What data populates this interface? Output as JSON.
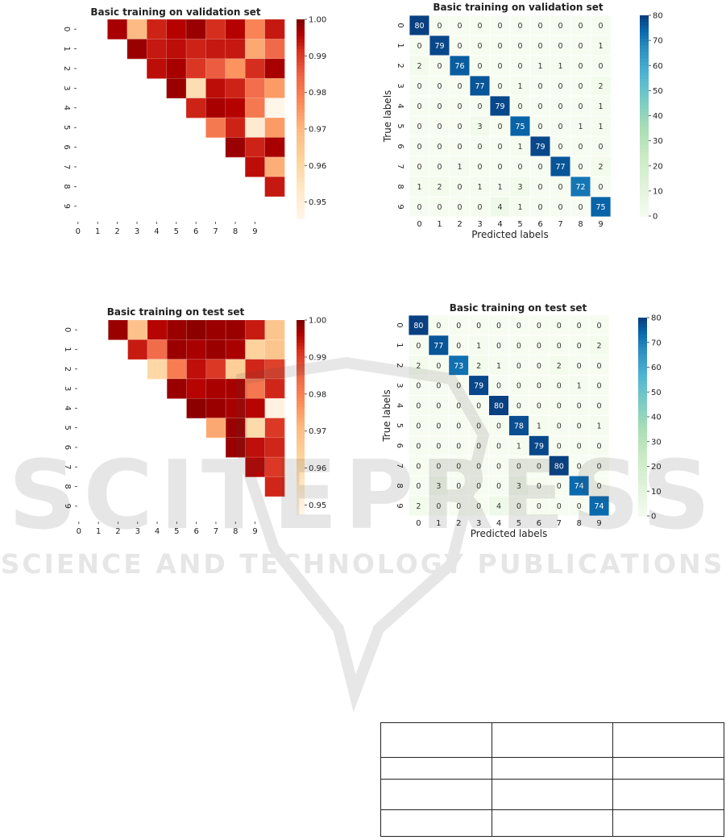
{
  "heatmaps": [
    {
      "title": "Basic training on validation set",
      "labels": [
        "0",
        "1",
        "2",
        "3",
        "4",
        "5",
        "6",
        "7",
        "8",
        "9"
      ],
      "colorbar_ticks": [
        "1.00",
        "0.99",
        "0.98",
        "0.97",
        "0.96",
        "0.95"
      ],
      "colorbar_values": [
        1.0,
        0.99,
        0.98,
        0.97,
        0.96,
        0.95
      ],
      "vmin": 0.9455,
      "vmax": 1.0,
      "matrix": [
        [
          null,
          0.997,
          0.97,
          0.993,
          0.996,
          0.998,
          0.992,
          0.996,
          0.979,
          0.994
        ],
        [
          null,
          null,
          0.998,
          0.994,
          0.995,
          0.993,
          0.994,
          0.994,
          0.973,
          0.984
        ],
        [
          null,
          null,
          null,
          0.995,
          0.997,
          0.991,
          0.986,
          0.976,
          0.992,
          0.997
        ],
        [
          null,
          null,
          null,
          null,
          0.998,
          0.958,
          0.995,
          0.993,
          0.983,
          0.975
        ],
        [
          null,
          null,
          null,
          null,
          null,
          0.993,
          0.997,
          0.996,
          0.981,
          0.946
        ],
        [
          null,
          null,
          null,
          null,
          null,
          null,
          0.981,
          0.993,
          0.952,
          0.975
        ],
        [
          null,
          null,
          null,
          null,
          null,
          null,
          null,
          0.998,
          0.993,
          0.997
        ],
        [
          null,
          null,
          null,
          null,
          null,
          null,
          null,
          null,
          0.995,
          0.972
        ],
        [
          null,
          null,
          null,
          null,
          null,
          null,
          null,
          null,
          null,
          0.994
        ],
        [
          null,
          null,
          null,
          null,
          null,
          null,
          null,
          null,
          null,
          null
        ]
      ]
    },
    {
      "title": "Basic training on test set",
      "labels": [
        "0",
        "1",
        "2",
        "3",
        "4",
        "5",
        "6",
        "7",
        "8",
        "9"
      ],
      "colorbar_ticks": [
        "1.00",
        "0.99",
        "0.98",
        "0.97",
        "0.96",
        "0.95"
      ],
      "colorbar_values": [
        1.0,
        0.99,
        0.98,
        0.97,
        0.96,
        0.95
      ],
      "vmin": 0.9475,
      "vmax": 1.0,
      "matrix": [
        [
          null,
          0.998,
          0.969,
          0.996,
          0.998,
          0.999,
          0.998,
          0.998,
          0.994,
          0.968
        ],
        [
          null,
          null,
          0.994,
          0.984,
          0.998,
          0.997,
          0.998,
          0.997,
          0.964,
          0.968
        ],
        [
          null,
          null,
          null,
          0.962,
          0.981,
          0.995,
          0.991,
          0.965,
          0.993,
          0.99
        ],
        [
          null,
          null,
          null,
          null,
          0.998,
          0.996,
          0.997,
          0.997,
          0.982,
          0.993
        ],
        [
          null,
          null,
          null,
          null,
          null,
          0.999,
          0.998,
          0.997,
          0.996,
          0.95
        ],
        [
          null,
          null,
          null,
          null,
          null,
          null,
          0.974,
          0.998,
          0.961,
          0.991
        ],
        [
          null,
          null,
          null,
          null,
          null,
          null,
          null,
          0.998,
          0.995,
          0.993
        ],
        [
          null,
          null,
          null,
          null,
          null,
          null,
          null,
          null,
          0.996,
          0.991
        ],
        [
          null,
          null,
          null,
          null,
          null,
          null,
          null,
          null,
          null,
          0.993
        ],
        [
          null,
          null,
          null,
          null,
          null,
          null,
          null,
          null,
          null,
          null
        ]
      ]
    }
  ],
  "confusion": [
    {
      "title": "Basic training on validation set",
      "xlabel": "Predicted labels",
      "ylabel": "True labels",
      "labels": [
        "0",
        "1",
        "2",
        "3",
        "4",
        "5",
        "6",
        "7",
        "8",
        "9"
      ],
      "colorbar_ticks": [
        "80",
        "70",
        "60",
        "50",
        "40",
        "30",
        "20",
        "10",
        "0"
      ],
      "colorbar_values": [
        80,
        70,
        60,
        50,
        40,
        30,
        20,
        10,
        0
      ],
      "vmax": 80,
      "matrix": [
        [
          80,
          0,
          0,
          0,
          0,
          0,
          0,
          0,
          0,
          0
        ],
        [
          0,
          79,
          0,
          0,
          0,
          0,
          0,
          0,
          0,
          1
        ],
        [
          2,
          0,
          76,
          0,
          0,
          0,
          1,
          1,
          0,
          0
        ],
        [
          0,
          0,
          0,
          77,
          0,
          1,
          0,
          0,
          0,
          2
        ],
        [
          0,
          0,
          0,
          0,
          79,
          0,
          0,
          0,
          0,
          1
        ],
        [
          0,
          0,
          0,
          3,
          0,
          75,
          0,
          0,
          1,
          1
        ],
        [
          0,
          0,
          0,
          0,
          0,
          1,
          79,
          0,
          0,
          0
        ],
        [
          0,
          0,
          1,
          0,
          0,
          0,
          0,
          77,
          0,
          2
        ],
        [
          1,
          2,
          0,
          1,
          1,
          3,
          0,
          0,
          72,
          0
        ],
        [
          0,
          0,
          0,
          0,
          4,
          1,
          0,
          0,
          0,
          75
        ]
      ]
    },
    {
      "title": "Basic training on test set",
      "xlabel": "Predicted labels",
      "ylabel": "True labels",
      "labels": [
        "0",
        "1",
        "2",
        "3",
        "4",
        "5",
        "6",
        "7",
        "8",
        "9"
      ],
      "colorbar_ticks": [
        "80",
        "70",
        "60",
        "50",
        "40",
        "30",
        "20",
        "10",
        "0"
      ],
      "colorbar_values": [
        80,
        70,
        60,
        50,
        40,
        30,
        20,
        10,
        0
      ],
      "vmax": 80,
      "matrix": [
        [
          80,
          0,
          0,
          0,
          0,
          0,
          0,
          0,
          0,
          0
        ],
        [
          0,
          77,
          0,
          1,
          0,
          0,
          0,
          0,
          0,
          2
        ],
        [
          2,
          0,
          73,
          2,
          1,
          0,
          0,
          2,
          0,
          0
        ],
        [
          0,
          0,
          0,
          79,
          0,
          0,
          0,
          0,
          1,
          0
        ],
        [
          0,
          0,
          0,
          0,
          80,
          0,
          0,
          0,
          0,
          0
        ],
        [
          0,
          0,
          0,
          0,
          0,
          78,
          1,
          0,
          0,
          1
        ],
        [
          0,
          0,
          0,
          0,
          0,
          1,
          79,
          0,
          0,
          0
        ],
        [
          0,
          0,
          0,
          0,
          0,
          0,
          0,
          80,
          0,
          0
        ],
        [
          0,
          3,
          0,
          0,
          0,
          3,
          0,
          0,
          74,
          0
        ],
        [
          2,
          0,
          0,
          0,
          4,
          0,
          0,
          0,
          0,
          74
        ]
      ]
    }
  ],
  "table": {
    "rows": [
      [
        "",
        "",
        ""
      ],
      [
        "",
        "",
        ""
      ],
      [
        "",
        "",
        ""
      ],
      [
        "",
        "",
        ""
      ]
    ]
  },
  "watermark": {
    "main": "SCITEPRESS",
    "sub": "SCIENCE AND TECHNOLOGY PUBLICATIONS"
  }
}
